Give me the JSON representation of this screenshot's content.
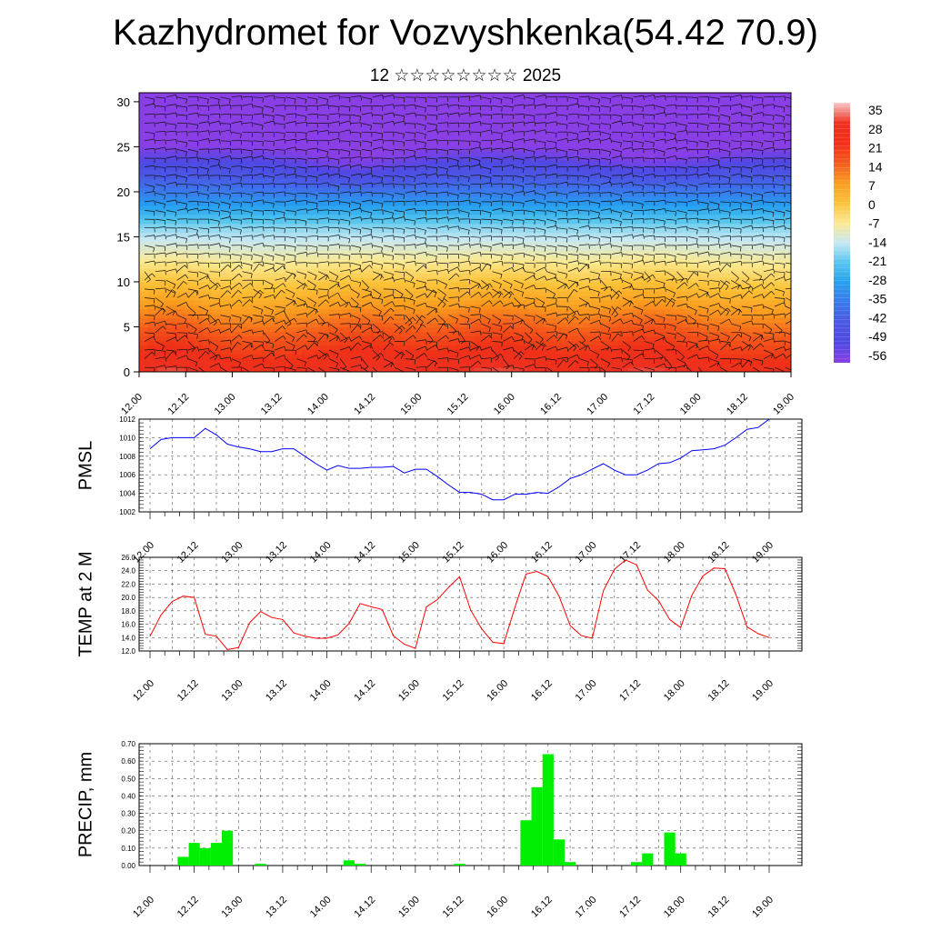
{
  "title": "Kazhydromet for Vozvyshkenka(54.42 70.9)",
  "subtitle": "12 ☆☆☆☆☆☆☆☆ 2025",
  "time_labels": [
    "12.00",
    "12.12",
    "13.00",
    "13.12",
    "14.00",
    "14.12",
    "15.00",
    "15.12",
    "16.00",
    "16.12",
    "17.00",
    "17.12",
    "18.00",
    "18.12",
    "19.00"
  ],
  "chart_data": [
    {
      "type": "heatmap",
      "name": "temperature-section",
      "y_ticks": [
        0,
        5,
        10,
        15,
        20,
        25,
        30
      ],
      "ylim": [
        0,
        31
      ],
      "colorbar": {
        "labels": [
          "35",
          "28",
          "21",
          "14",
          "7",
          "0",
          "-7",
          "-14",
          "-21",
          "-28",
          "-35",
          "-42",
          "-49",
          "-56"
        ],
        "stops": [
          "#f6c8c8",
          "#ee3020",
          "#f03018",
          "#f55a1a",
          "#fa9b1e",
          "#fcc238",
          "#fbe990",
          "#c8e8f2",
          "#55c6ee",
          "#25a0f0",
          "#3a78ee",
          "#4a58e4",
          "#5048e4",
          "#8a3ee6"
        ]
      },
      "wind_barbs": true
    },
    {
      "type": "line",
      "ylabel": "PMSL",
      "ylim": [
        1002,
        1012
      ],
      "y_ticks": [
        "1002",
        "1004",
        "1006",
        "1008",
        "1010",
        "1012"
      ],
      "color": "#0000ff",
      "x": [
        0,
        3,
        6,
        9,
        12,
        15,
        18,
        21,
        24,
        27,
        30,
        33,
        36,
        39,
        42,
        45,
        48,
        51,
        54,
        57,
        60,
        63,
        66,
        69,
        72,
        75,
        78,
        81,
        84,
        87,
        90,
        93,
        96,
        99,
        102,
        105,
        108,
        111,
        114,
        117,
        120,
        123,
        126,
        129,
        132,
        135,
        138,
        141,
        144,
        147,
        150,
        153,
        156,
        159,
        162,
        165,
        168
      ],
      "values": [
        1008.8,
        1009.8,
        1010,
        1010,
        1010,
        1011,
        1010.3,
        1009.3,
        1009,
        1008.8,
        1008.5,
        1008.5,
        1008.8,
        1008.8,
        1008,
        1007.2,
        1006.5,
        1007,
        1006.7,
        1006.7,
        1006.8,
        1006.8,
        1006.9,
        1006.2,
        1006.6,
        1006.6,
        1005.8,
        1004.9,
        1004.1,
        1004.1,
        1003.9,
        1003.3,
        1003.3,
        1003.9,
        1003.9,
        1004.1,
        1004,
        1004.7,
        1005.6,
        1006,
        1006.6,
        1007.2,
        1006.5,
        1006,
        1006,
        1006.5,
        1007.2,
        1007.3,
        1007.8,
        1008.6,
        1008.7,
        1008.8,
        1009.2,
        1010,
        1010.9,
        1011.1,
        1012
      ]
    },
    {
      "type": "line",
      "ylabel": "TEMP at 2 M",
      "ylim": [
        12,
        26
      ],
      "y_ticks": [
        "12.0",
        "14.0",
        "16.0",
        "18.0",
        "20.0",
        "22.0",
        "24.0",
        "26.0"
      ],
      "color": "#ff0000",
      "x": [
        0,
        3,
        6,
        9,
        12,
        15,
        18,
        21,
        24,
        27,
        30,
        33,
        36,
        39,
        42,
        45,
        48,
        51,
        54,
        57,
        60,
        63,
        66,
        69,
        72,
        75,
        78,
        81,
        84,
        87,
        90,
        93,
        96,
        99,
        102,
        105,
        108,
        111,
        114,
        117,
        120,
        123,
        126,
        129,
        132,
        135,
        138,
        141,
        144,
        147,
        150,
        153,
        156,
        159,
        162,
        165,
        168
      ],
      "values": [
        14.2,
        17.4,
        19.4,
        20.2,
        20,
        14.5,
        14.2,
        12.2,
        12.5,
        16.2,
        17.9,
        17,
        16.7,
        14.7,
        14.2,
        13.9,
        13.9,
        14.4,
        16.1,
        19.1,
        18.6,
        18.2,
        14.3,
        13,
        12.4,
        18.6,
        19.7,
        21.5,
        23.1,
        18.1,
        15.3,
        13.3,
        13.1,
        18.5,
        23.5,
        23.9,
        23.1,
        20.2,
        15.8,
        14.3,
        13.9,
        21,
        24.2,
        25.6,
        24.9,
        21.1,
        19.5,
        16.7,
        15.5,
        20.3,
        23.2,
        24.4,
        24.3,
        20.4,
        15.6,
        14.6,
        14
      ]
    },
    {
      "type": "bar",
      "ylabel": "PRECIP, mm",
      "ylim": [
        0,
        0.7
      ],
      "y_ticks": [
        "0.00",
        "0.10",
        "0.20",
        "0.30",
        "0.40",
        "0.50",
        "0.60",
        "0.70"
      ],
      "color": "#00ee00",
      "x": [
        0,
        3,
        6,
        9,
        12,
        15,
        18,
        21,
        24,
        27,
        30,
        33,
        36,
        39,
        42,
        45,
        48,
        51,
        54,
        57,
        60,
        63,
        66,
        69,
        72,
        75,
        78,
        81,
        84,
        87,
        90,
        93,
        96,
        99,
        102,
        105,
        108,
        111,
        114,
        117,
        120,
        123,
        126,
        129,
        132,
        135,
        138,
        141,
        144,
        147,
        150,
        153,
        156,
        159,
        162,
        165,
        168
      ],
      "values": [
        0,
        0,
        0,
        0.05,
        0.13,
        0.1,
        0.13,
        0.2,
        0,
        0,
        0.01,
        0,
        0,
        0,
        0,
        0,
        0,
        0,
        0.03,
        0.01,
        0,
        0,
        0,
        0,
        0,
        0,
        0,
        0,
        0.01,
        0,
        0,
        0,
        0,
        0,
        0.26,
        0.45,
        0.64,
        0.15,
        0.02,
        0,
        0,
        0,
        0,
        0,
        0.02,
        0.07,
        0,
        0.19,
        0.07,
        0,
        0,
        0,
        0,
        0,
        0,
        0,
        0
      ]
    }
  ]
}
